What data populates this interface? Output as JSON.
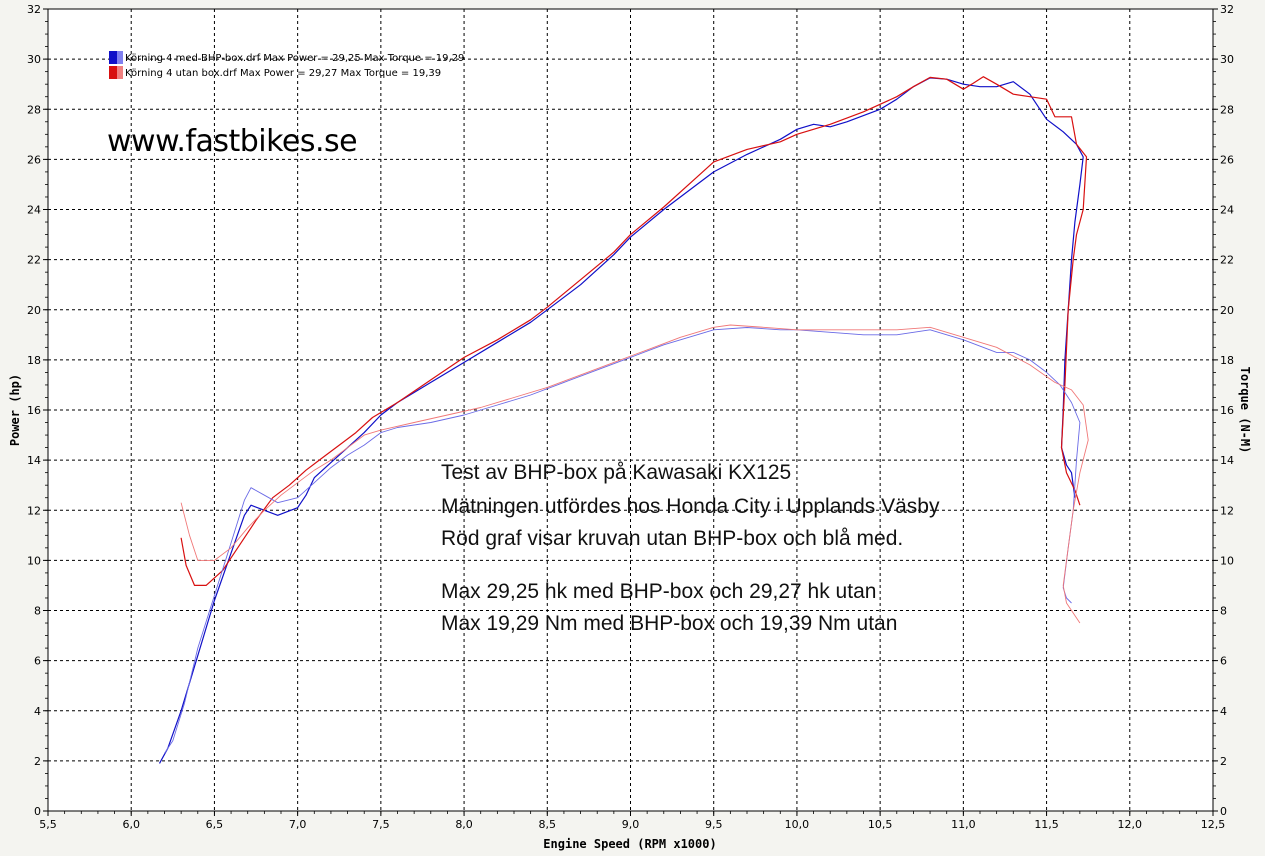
{
  "chart_data": {
    "type": "line",
    "xlabel": "Engine Speed (RPM x1000)",
    "ylabel_left": "Power (hp)",
    "ylabel_right": "Torque (N-M)",
    "xlim": [
      5.5,
      12.5
    ],
    "ylim": [
      0,
      32
    ],
    "x_ticks": [
      "5,5",
      "6,0",
      "6,5",
      "7,0",
      "7,5",
      "8,0",
      "8,5",
      "9,0",
      "9,5",
      "10,0",
      "10,5",
      "11,0",
      "11,5",
      "12,0",
      "12,5"
    ],
    "y_ticks": [
      "0",
      "2",
      "4",
      "6",
      "8",
      "10",
      "12",
      "14",
      "16",
      "18",
      "20",
      "22",
      "24",
      "26",
      "28",
      "30",
      "32"
    ],
    "grid": true,
    "legend_position": "top-left",
    "legend": [
      "Körning 4 med BHP-box.drf Max Power = 29,25 Max Torque = 19,29",
      "Körning 4 utan box.drf Max Power = 29,27 Max Torque = 19,39"
    ],
    "watermark": "www.fastbikes.se",
    "notes": [
      "Test av BHP-box på Kawasaki KX125",
      "Mätningen utfördes hos Honda City i Upplands Väsby",
      "Röd graf visar kruvan utan BHP-box och blå med.",
      "Max 29,25 hk med BHP-box och 29,27 hk utan",
      "Max 19,29 Nm med BHP-box och 19,39 Nm utan"
    ],
    "series": [
      {
        "name": "Körning 4 med BHP-box.drf",
        "kind": "power",
        "color": "#1010c8",
        "width": 1.2,
        "points": [
          [
            6.17,
            1.9
          ],
          [
            6.22,
            2.5
          ],
          [
            6.3,
            4.0
          ],
          [
            6.4,
            6.2
          ],
          [
            6.5,
            8.4
          ],
          [
            6.6,
            10.3
          ],
          [
            6.68,
            11.8
          ],
          [
            6.72,
            12.2
          ],
          [
            6.8,
            12.0
          ],
          [
            6.88,
            11.8
          ],
          [
            7.0,
            12.1
          ],
          [
            7.05,
            12.6
          ],
          [
            7.1,
            13.3
          ],
          [
            7.2,
            13.9
          ],
          [
            7.3,
            14.5
          ],
          [
            7.4,
            15.1
          ],
          [
            7.5,
            15.8
          ],
          [
            7.6,
            16.3
          ],
          [
            7.7,
            16.7
          ],
          [
            7.8,
            17.1
          ],
          [
            8.0,
            17.9
          ],
          [
            8.2,
            18.7
          ],
          [
            8.4,
            19.5
          ],
          [
            8.5,
            20.0
          ],
          [
            8.7,
            21.0
          ],
          [
            8.9,
            22.2
          ],
          [
            9.0,
            22.9
          ],
          [
            9.2,
            24.0
          ],
          [
            9.4,
            25.0
          ],
          [
            9.5,
            25.5
          ],
          [
            9.7,
            26.2
          ],
          [
            9.9,
            26.8
          ],
          [
            10.0,
            27.2
          ],
          [
            10.1,
            27.4
          ],
          [
            10.2,
            27.3
          ],
          [
            10.3,
            27.5
          ],
          [
            10.5,
            28.0
          ],
          [
            10.6,
            28.4
          ],
          [
            10.7,
            28.9
          ],
          [
            10.8,
            29.25
          ],
          [
            10.9,
            29.2
          ],
          [
            11.0,
            29.0
          ],
          [
            11.1,
            28.9
          ],
          [
            11.2,
            28.9
          ],
          [
            11.3,
            29.1
          ],
          [
            11.4,
            28.6
          ],
          [
            11.5,
            27.6
          ],
          [
            11.6,
            27.1
          ],
          [
            11.68,
            26.6
          ],
          [
            11.72,
            26.1
          ],
          [
            11.7,
            25.0
          ],
          [
            11.67,
            23.5
          ],
          [
            11.65,
            22.0
          ],
          [
            11.63,
            20.0
          ],
          [
            11.61,
            18.0
          ],
          [
            11.6,
            16.0
          ],
          [
            11.59,
            14.5
          ],
          [
            11.62,
            13.8
          ],
          [
            11.65,
            13.5
          ],
          [
            11.67,
            12.5
          ]
        ]
      },
      {
        "name": "Körning 4 utan box.drf",
        "kind": "power",
        "color": "#d81010",
        "width": 1.2,
        "points": [
          [
            6.3,
            10.9
          ],
          [
            6.33,
            9.8
          ],
          [
            6.38,
            9.0
          ],
          [
            6.45,
            9.0
          ],
          [
            6.55,
            9.6
          ],
          [
            6.65,
            10.6
          ],
          [
            6.75,
            11.6
          ],
          [
            6.85,
            12.5
          ],
          [
            6.95,
            13.0
          ],
          [
            7.05,
            13.6
          ],
          [
            7.15,
            14.1
          ],
          [
            7.25,
            14.6
          ],
          [
            7.35,
            15.1
          ],
          [
            7.45,
            15.7
          ],
          [
            7.6,
            16.3
          ],
          [
            7.8,
            17.2
          ],
          [
            8.0,
            18.1
          ],
          [
            8.2,
            18.8
          ],
          [
            8.4,
            19.6
          ],
          [
            8.5,
            20.1
          ],
          [
            8.7,
            21.2
          ],
          [
            8.9,
            22.3
          ],
          [
            9.0,
            23.0
          ],
          [
            9.2,
            24.1
          ],
          [
            9.4,
            25.3
          ],
          [
            9.5,
            25.9
          ],
          [
            9.7,
            26.4
          ],
          [
            9.9,
            26.7
          ],
          [
            10.0,
            27.0
          ],
          [
            10.2,
            27.4
          ],
          [
            10.4,
            27.9
          ],
          [
            10.6,
            28.5
          ],
          [
            10.7,
            28.9
          ],
          [
            10.8,
            29.27
          ],
          [
            10.9,
            29.2
          ],
          [
            11.0,
            28.8
          ],
          [
            11.05,
            29.0
          ],
          [
            11.12,
            29.3
          ],
          [
            11.2,
            29.0
          ],
          [
            11.3,
            28.6
          ],
          [
            11.4,
            28.5
          ],
          [
            11.5,
            28.4
          ],
          [
            11.55,
            27.7
          ],
          [
            11.65,
            27.7
          ],
          [
            11.68,
            26.6
          ],
          [
            11.74,
            26.1
          ],
          [
            11.72,
            24.0
          ],
          [
            11.68,
            23.0
          ],
          [
            11.66,
            22.0
          ],
          [
            11.63,
            20.0
          ],
          [
            11.61,
            17.0
          ],
          [
            11.59,
            14.5
          ],
          [
            11.62,
            13.5
          ],
          [
            11.67,
            12.8
          ],
          [
            11.7,
            12.2
          ]
        ]
      },
      {
        "name": "Körning 4 med BHP-box.drf",
        "kind": "torque",
        "color": "#6a6ae6",
        "width": 0.9,
        "points": [
          [
            6.2,
            2.3
          ],
          [
            6.25,
            2.8
          ],
          [
            6.32,
            4.3
          ],
          [
            6.4,
            6.5
          ],
          [
            6.5,
            8.6
          ],
          [
            6.6,
            10.7
          ],
          [
            6.68,
            12.4
          ],
          [
            6.72,
            12.9
          ],
          [
            6.8,
            12.6
          ],
          [
            6.88,
            12.3
          ],
          [
            7.0,
            12.5
          ],
          [
            7.1,
            13.1
          ],
          [
            7.2,
            13.7
          ],
          [
            7.3,
            14.2
          ],
          [
            7.4,
            14.6
          ],
          [
            7.5,
            15.1
          ],
          [
            7.6,
            15.3
          ],
          [
            7.8,
            15.5
          ],
          [
            8.0,
            15.8
          ],
          [
            8.2,
            16.2
          ],
          [
            8.4,
            16.6
          ],
          [
            8.6,
            17.1
          ],
          [
            8.8,
            17.6
          ],
          [
            9.0,
            18.1
          ],
          [
            9.2,
            18.6
          ],
          [
            9.4,
            19.0
          ],
          [
            9.5,
            19.2
          ],
          [
            9.7,
            19.29
          ],
          [
            9.9,
            19.2
          ],
          [
            10.0,
            19.2
          ],
          [
            10.2,
            19.1
          ],
          [
            10.4,
            19.0
          ],
          [
            10.5,
            19.0
          ],
          [
            10.6,
            19.0
          ],
          [
            10.8,
            19.2
          ],
          [
            11.0,
            18.8
          ],
          [
            11.2,
            18.3
          ],
          [
            11.3,
            18.3
          ],
          [
            11.4,
            18.0
          ],
          [
            11.5,
            17.5
          ],
          [
            11.58,
            17.0
          ],
          [
            11.65,
            16.3
          ],
          [
            11.7,
            15.5
          ],
          [
            11.68,
            14.0
          ],
          [
            11.66,
            12.0
          ],
          [
            11.63,
            10.5
          ],
          [
            11.6,
            8.9
          ],
          [
            11.62,
            8.5
          ],
          [
            11.65,
            8.3
          ]
        ]
      },
      {
        "name": "Körning 4 utan box.drf",
        "kind": "torque",
        "color": "#f07878",
        "width": 0.9,
        "points": [
          [
            6.3,
            12.3
          ],
          [
            6.35,
            11.0
          ],
          [
            6.4,
            10.0
          ],
          [
            6.5,
            10.0
          ],
          [
            6.6,
            10.5
          ],
          [
            6.7,
            11.3
          ],
          [
            6.8,
            12.0
          ],
          [
            6.9,
            12.6
          ],
          [
            7.0,
            13.1
          ],
          [
            7.1,
            13.6
          ],
          [
            7.2,
            14.0
          ],
          [
            7.3,
            14.5
          ],
          [
            7.4,
            15.0
          ],
          [
            7.5,
            15.2
          ],
          [
            7.7,
            15.5
          ],
          [
            7.9,
            15.8
          ],
          [
            8.1,
            16.1
          ],
          [
            8.3,
            16.5
          ],
          [
            8.5,
            16.9
          ],
          [
            8.7,
            17.4
          ],
          [
            8.9,
            17.9
          ],
          [
            9.1,
            18.4
          ],
          [
            9.3,
            18.9
          ],
          [
            9.5,
            19.3
          ],
          [
            9.6,
            19.39
          ],
          [
            9.8,
            19.3
          ],
          [
            10.0,
            19.2
          ],
          [
            10.2,
            19.2
          ],
          [
            10.4,
            19.2
          ],
          [
            10.6,
            19.2
          ],
          [
            10.8,
            19.3
          ],
          [
            11.0,
            18.9
          ],
          [
            11.2,
            18.5
          ],
          [
            11.4,
            17.8
          ],
          [
            11.55,
            17.1
          ],
          [
            11.65,
            16.8
          ],
          [
            11.72,
            16.2
          ],
          [
            11.75,
            14.8
          ],
          [
            11.7,
            13.5
          ],
          [
            11.66,
            12.0
          ],
          [
            11.63,
            10.5
          ],
          [
            11.6,
            9.0
          ],
          [
            11.62,
            8.3
          ],
          [
            11.66,
            7.9
          ],
          [
            11.7,
            7.5
          ]
        ]
      }
    ]
  },
  "colors": {
    "background": "#f4f4f0",
    "plot_background": "#ffffff",
    "grid": "#000000"
  }
}
